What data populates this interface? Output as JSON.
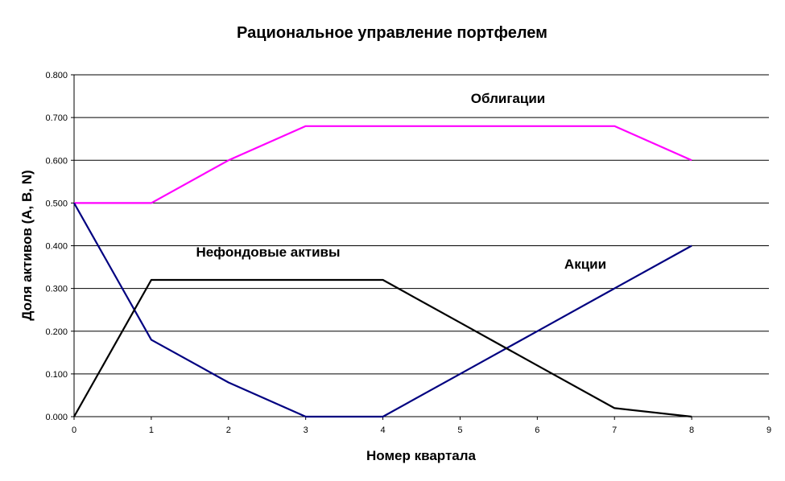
{
  "chart_data": {
    "type": "line",
    "title": "Рациональное управление портфелем",
    "xlabel": "Номер квартала",
    "ylabel": "Доля активов (A, B, N)",
    "xlim": [
      0,
      9
    ],
    "ylim": [
      0,
      0.8
    ],
    "x_ticks": [
      "0",
      "1",
      "2",
      "3",
      "4",
      "5",
      "6",
      "7",
      "8",
      "9"
    ],
    "y_ticks": [
      "0.000",
      "0.100",
      "0.200",
      "0.300",
      "0.400",
      "0.500",
      "0.600",
      "0.700",
      "0.800"
    ],
    "grid": true,
    "legend": "none",
    "x": [
      0,
      1,
      2,
      3,
      4,
      5,
      6,
      7,
      8
    ],
    "series": [
      {
        "key": "bonds",
        "label": "Облигации",
        "color": "#ff00ff",
        "values": [
          0.5,
          0.5,
          0.6,
          0.68,
          0.68,
          0.68,
          0.68,
          0.68,
          0.6
        ]
      },
      {
        "key": "stocks",
        "label": "Акции",
        "color": "#000080",
        "values": [
          0.5,
          0.18,
          0.08,
          0.0,
          0.0,
          0.1,
          0.2,
          0.3,
          0.4
        ]
      },
      {
        "key": "nonfund",
        "label": "Нефондовые активы",
        "color": "#000000",
        "values": [
          0.0,
          0.32,
          0.32,
          0.32,
          0.32,
          0.22,
          0.12,
          0.02,
          0.0
        ]
      }
    ]
  }
}
